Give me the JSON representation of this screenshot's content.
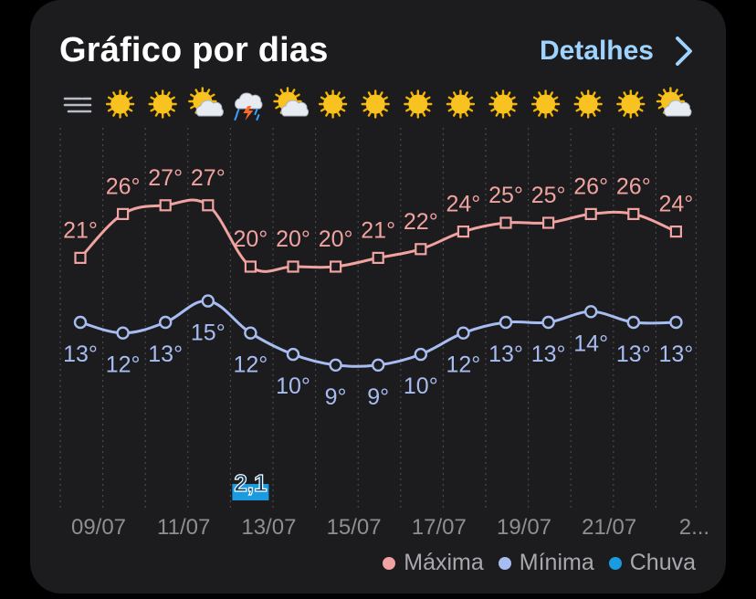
{
  "header": {
    "title": "Gráfico por dias",
    "details_label": "Detalhes"
  },
  "weather_icons": [
    "fog-icon",
    "sun-icon",
    "sun-icon",
    "partly-cloudy-icon",
    "thunderstorm-icon",
    "partly-cloudy-icon",
    "sun-icon",
    "sun-icon",
    "sun-icon",
    "sun-icon",
    "sun-icon",
    "sun-icon",
    "sun-icon",
    "sun-icon",
    "partly-cloudy-icon"
  ],
  "legend": [
    {
      "label": "Máxima",
      "color": "#f0a3a0"
    },
    {
      "label": "Mínima",
      "color": "#a7bdf2"
    },
    {
      "label": "Chuva",
      "color": "#1a9be0"
    }
  ],
  "chart_data": {
    "type": "line",
    "x_labels": [
      "09/07",
      "11/07",
      "13/07",
      "15/07",
      "17/07",
      "19/07",
      "21/07",
      "2..."
    ],
    "series": [
      {
        "name": "Máxima",
        "color": "#f0a3a0",
        "values": [
          21,
          26,
          27,
          27,
          20,
          20,
          20,
          21,
          22,
          24,
          25,
          25,
          26,
          26,
          24
        ],
        "labels": [
          "21°",
          "26°",
          "27°",
          "27°",
          "20°",
          "20°",
          "20°",
          "21°",
          "22°",
          "24°",
          "25°",
          "25°",
          "26°",
          "26°",
          "24°"
        ]
      },
      {
        "name": "Mínima",
        "color": "#a7bdf2",
        "values": [
          13,
          12,
          13,
          15,
          12,
          10,
          9,
          9,
          10,
          12,
          13,
          13,
          14,
          13,
          13
        ],
        "labels": [
          "13°",
          "12°",
          "13°",
          "15°",
          "12°",
          "10°",
          "9°",
          "9°",
          "10°",
          "12°",
          "13°",
          "13°",
          "14°",
          "13°",
          "13°"
        ]
      },
      {
        "name": "Chuva",
        "color": "#1a9be0",
        "values": [
          null,
          null,
          null,
          null,
          2.1,
          null,
          null,
          null,
          null,
          null,
          null,
          null,
          null,
          null,
          null
        ],
        "labels": [
          "",
          "",
          "",
          "",
          "2,1",
          "",
          "",
          "",
          "",
          "",
          "",
          "",
          "",
          "",
          ""
        ]
      }
    ],
    "grid": true,
    "legend_position": "bottom-right"
  }
}
